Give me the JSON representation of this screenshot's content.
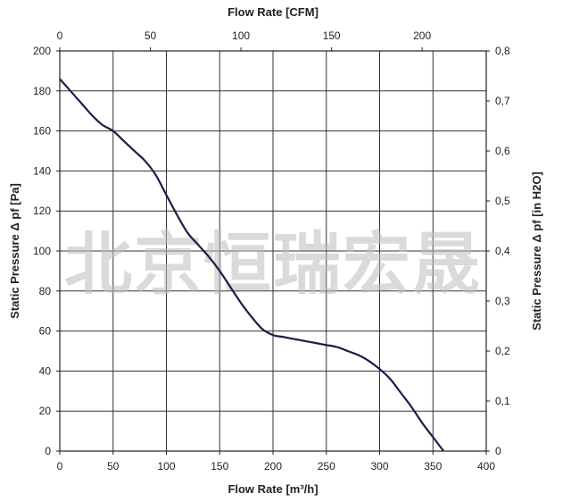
{
  "chart_data": {
    "type": "line",
    "title": "",
    "xlabel": "Flow Rate [m³/h]",
    "x2label": "Flow Rate [CFM]",
    "ylabel": "Static Pressure Δ pf [Pa]",
    "y2label": "Static Pressure Δ pf [in H2O]",
    "xlim": [
      0,
      400
    ],
    "ylim": [
      0,
      200
    ],
    "x2lim": [
      0,
      235.4
    ],
    "y2lim": [
      0,
      0.8
    ],
    "grid": true,
    "x_ticks": [
      "0",
      "50",
      "100",
      "150",
      "200",
      "250",
      "300",
      "350",
      "400"
    ],
    "y_ticks": [
      "0",
      "20",
      "40",
      "60",
      "80",
      "100",
      "120",
      "140",
      "160",
      "180",
      "200"
    ],
    "x2_ticks": [
      "0",
      "50",
      "100",
      "150",
      "200"
    ],
    "y2_ticks": [
      "0",
      "0,1",
      "0,2",
      "0,3",
      "0,4",
      "0,5",
      "0,6",
      "0,7",
      "0,8"
    ],
    "series": [
      {
        "x": [
          0,
          10,
          20,
          30,
          40,
          50,
          60,
          70,
          80,
          90,
          100,
          110,
          120,
          130,
          140,
          150,
          160,
          170,
          180,
          190,
          200,
          210,
          220,
          230,
          240,
          250,
          260,
          270,
          280,
          290,
          300,
          310,
          320,
          330,
          340,
          350,
          360
        ],
        "y": [
          186,
          180,
          174,
          168,
          163,
          160,
          155,
          150,
          145,
          138,
          128,
          118,
          109,
          103,
          97,
          90,
          82,
          74,
          67,
          61,
          58,
          57,
          56,
          55,
          54,
          53,
          52,
          50,
          48,
          45,
          41,
          36,
          29,
          22,
          14,
          7,
          0
        ]
      }
    ],
    "watermark": "北京恒瑞宏晟"
  }
}
